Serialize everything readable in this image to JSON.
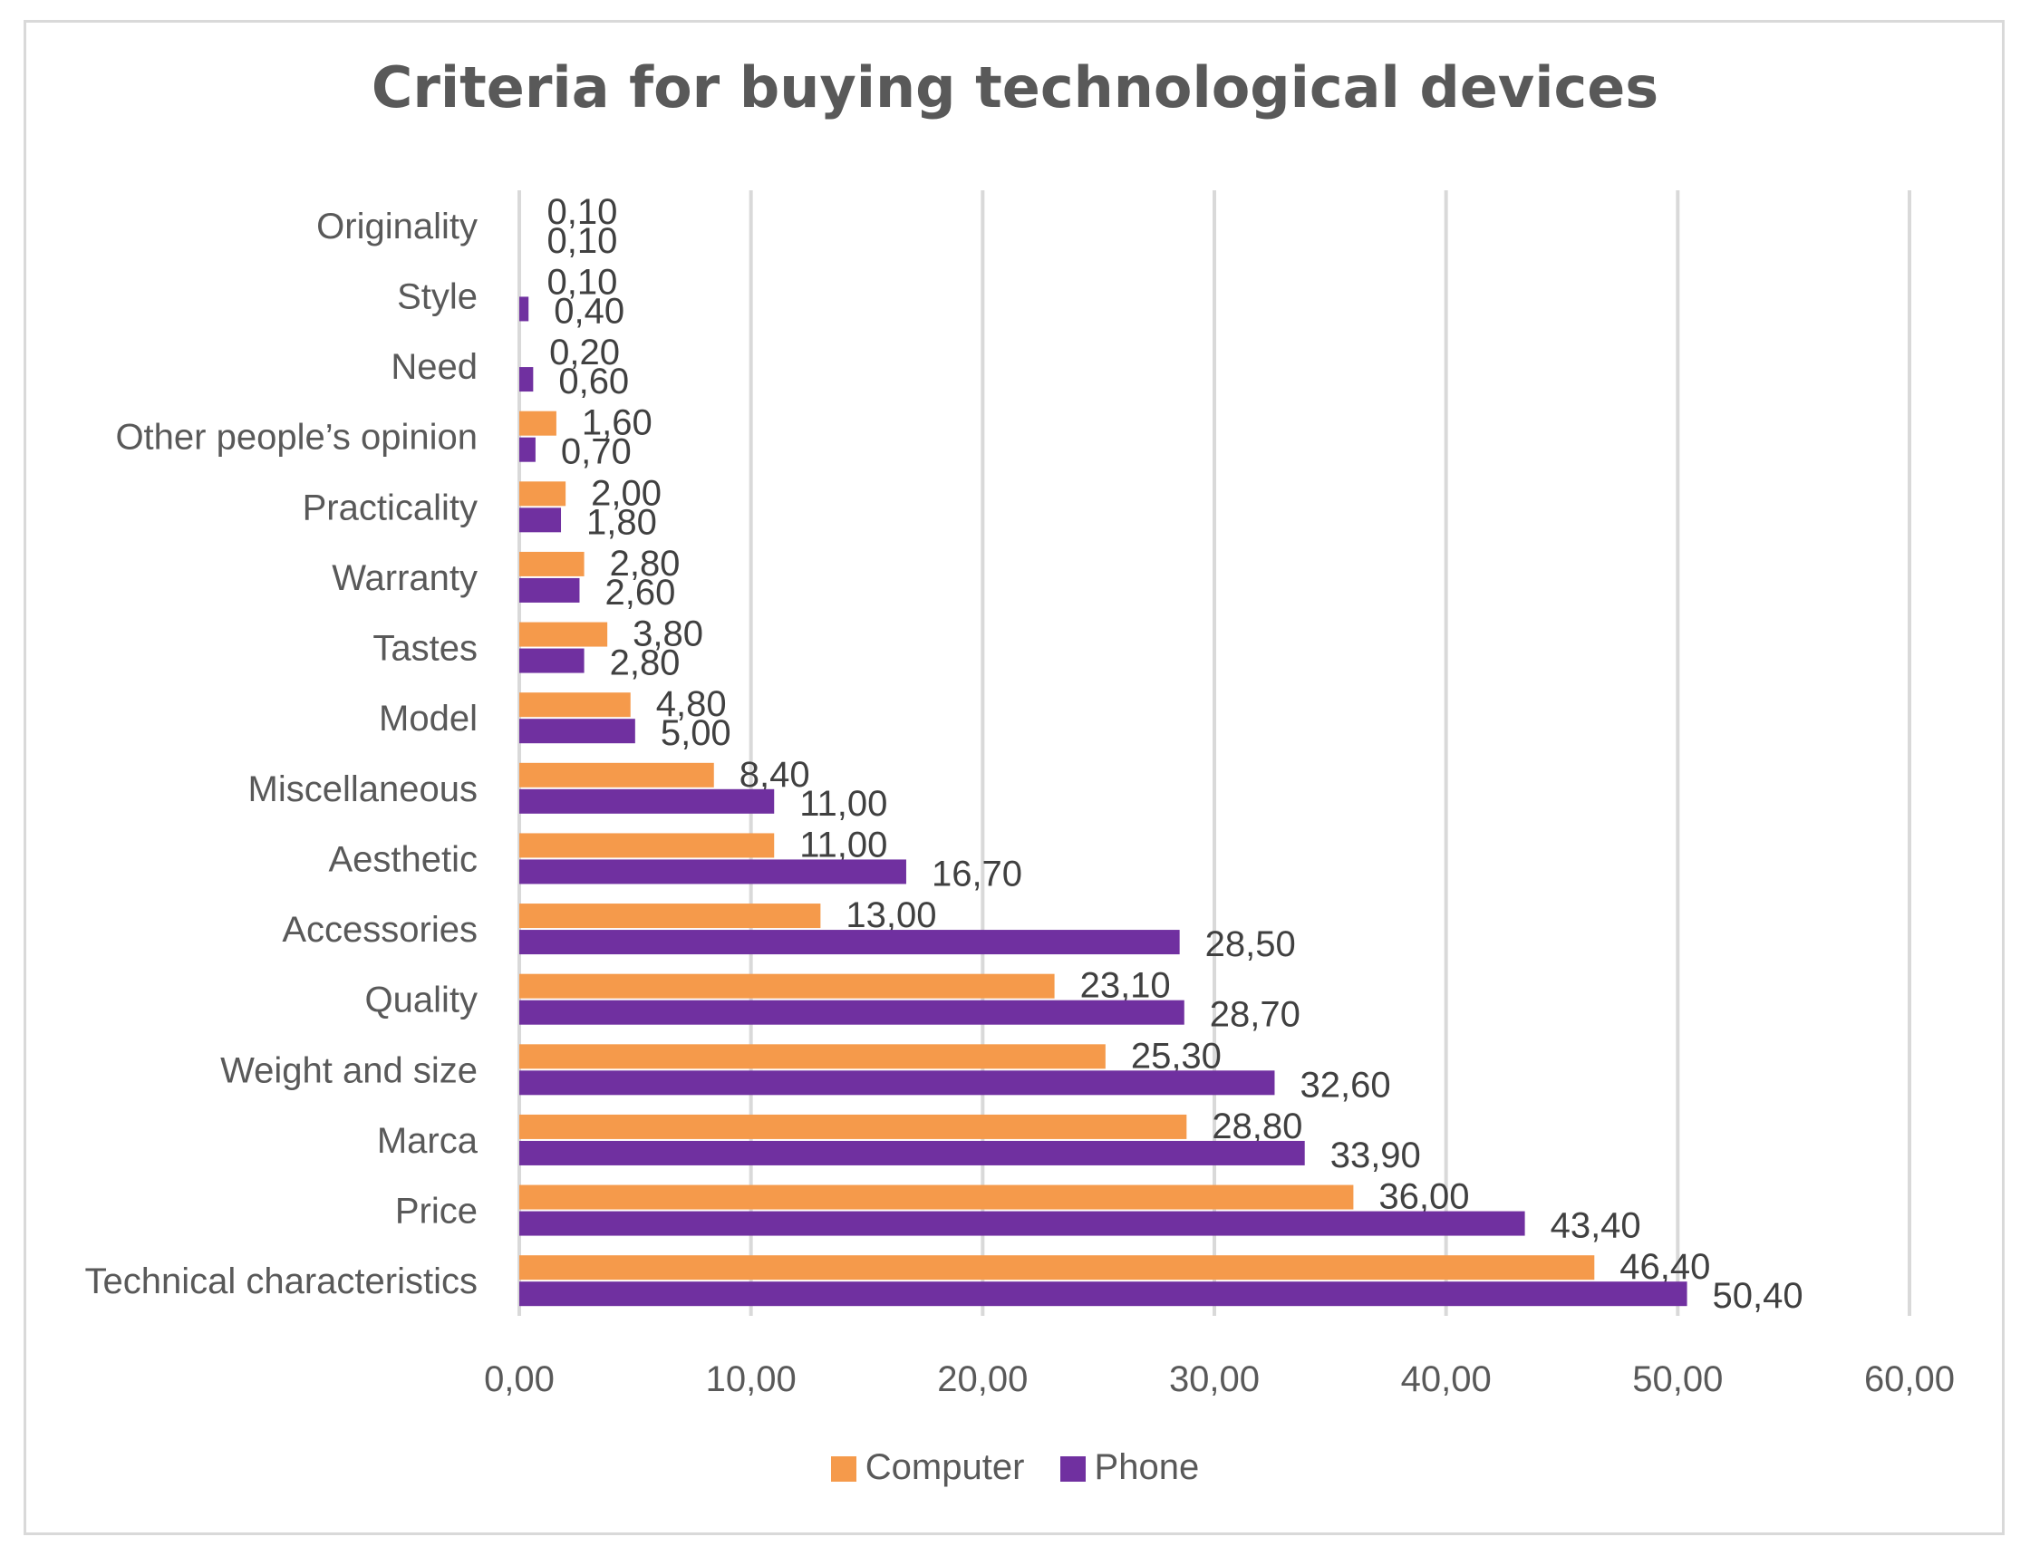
{
  "chart_data": {
    "type": "bar",
    "orientation": "horizontal",
    "title": "Criteria for buying technological devices",
    "categories": [
      "Originality",
      "Style",
      "Need",
      "Other people’s opinion",
      "Practicality",
      "Warranty",
      "Tastes",
      "Model",
      "Miscellaneous",
      "Aesthetic",
      "Accessories",
      "Quality",
      "Weight and size",
      "Marca",
      "Price",
      "Technical characteristics"
    ],
    "series": [
      {
        "name": "Computer",
        "color": "#f59a4b",
        "values": [
          0.1,
          0.1,
          0.2,
          1.6,
          2.0,
          2.8,
          3.8,
          4.8,
          8.4,
          11.0,
          13.0,
          23.1,
          25.3,
          28.8,
          36.0,
          46.4
        ],
        "labels": [
          "0,10",
          "0,10",
          "0,20",
          "1,60",
          "2,00",
          "2,80",
          "3,80",
          "4,80",
          "8,40",
          "11,00",
          "13,00",
          "23,10",
          "25,30",
          "28,80",
          "36,00",
          "46,40"
        ]
      },
      {
        "name": "Phone",
        "color": "#7030a0",
        "values": [
          0.1,
          0.4,
          0.6,
          0.7,
          1.8,
          2.6,
          2.8,
          5.0,
          11.0,
          16.7,
          28.5,
          28.7,
          32.6,
          33.9,
          43.4,
          50.4
        ],
        "labels": [
          "0,10",
          "0,40",
          "0,60",
          "0,70",
          "1,80",
          "2,60",
          "2,80",
          "5,00",
          "11,00",
          "16,70",
          "28,50",
          "28,70",
          "32,60",
          "33,90",
          "43,40",
          "50,40"
        ]
      }
    ],
    "xlim": [
      0,
      60
    ],
    "xticks": [
      0,
      10,
      20,
      30,
      40,
      50,
      60
    ],
    "xtick_labels": [
      "0,00",
      "10,00",
      "20,00",
      "30,00",
      "40,00",
      "50,00",
      "60,00"
    ],
    "grid": true,
    "legend": "bottom",
    "xlabel": "",
    "ylabel": ""
  }
}
